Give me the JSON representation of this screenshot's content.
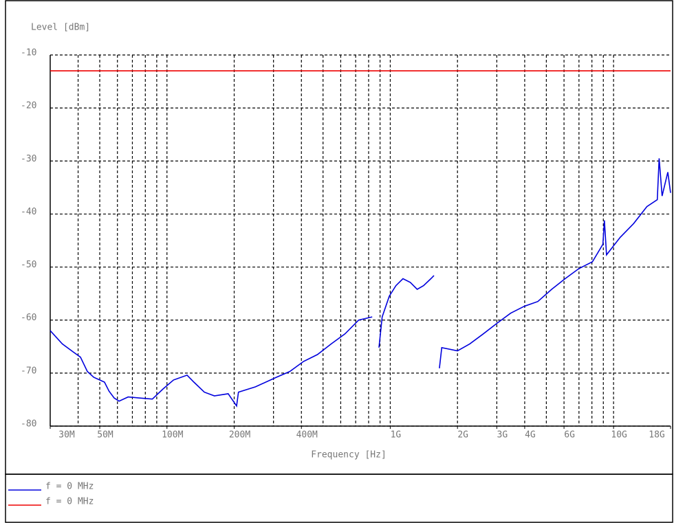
{
  "chart_data": {
    "type": "line",
    "y_label": "Level [dBm]",
    "x_label": "Frequency [Hz]",
    "xscale": "log",
    "xlim": [
      30000000,
      18000000000
    ],
    "xticks": [
      {
        "value": 30000000,
        "label": "30M"
      },
      {
        "value": 50000000,
        "label": "50M"
      },
      {
        "value": 100000000,
        "label": "100M"
      },
      {
        "value": 200000000,
        "label": "200M"
      },
      {
        "value": 400000000,
        "label": "400M"
      },
      {
        "value": 1000000000,
        "label": "1G"
      },
      {
        "value": 2000000000,
        "label": "2G"
      },
      {
        "value": 3000000000,
        "label": "3G"
      },
      {
        "value": 4000000000,
        "label": "4G"
      },
      {
        "value": 6000000000,
        "label": "6G"
      },
      {
        "value": 10000000000,
        "label": "10G"
      },
      {
        "value": 18000000000,
        "label": "18G"
      }
    ],
    "xgrid": [
      40000000,
      50000000,
      60000000,
      70000000,
      80000000,
      90000000,
      100000000,
      200000000,
      300000000,
      400000000,
      500000000,
      600000000,
      700000000,
      800000000,
      900000000,
      1000000000,
      2000000000,
      3000000000,
      4000000000,
      5000000000,
      6000000000,
      7000000000,
      8000000000,
      9000000000,
      10000000000
    ],
    "ylim": [
      -80,
      -10
    ],
    "yticks": [
      -80,
      -70,
      -60,
      -50,
      -40,
      -30,
      -20,
      -10
    ],
    "grid": true,
    "series": [
      {
        "name": "f = 0 MHz",
        "color": "#0000dd",
        "x": [
          30000000,
          34000000,
          38000000,
          41000000,
          44000000,
          47000000,
          52500000,
          55000000,
          58000000,
          61000000,
          67000000,
          75000000,
          86000000,
          96000000,
          107000000,
          123000000,
          132000000,
          147000000,
          163000000,
          188000000,
          205000000,
          209000000,
          249000000,
          309000000,
          355000000,
          409000000,
          472000000,
          544000000,
          627000000,
          722000000,
          830000000,
          860000000,
          890000000,
          920000000,
          990000000,
          1060000000,
          1140000000,
          1230000000,
          1320000000,
          1410000000,
          1520000000,
          1570000000,
          1610000000,
          1660000000,
          1700000000,
          2000000000,
          2270000000,
          2610000000,
          3010000000,
          3460000000,
          3980000000,
          4580000000,
          5280000000,
          6070000000,
          6990000000,
          8040000000,
          8960000000,
          9100000000,
          9300000000,
          10700000000,
          12300000000,
          14100000000,
          15700000000,
          16000000000,
          16500000000,
          17500000000,
          18000000000
        ],
        "values": [
          -62,
          -64.5,
          -66,
          -67,
          -69.7,
          -70.8,
          -71.7,
          -73.4,
          -74.7,
          -75.3,
          -74.5,
          -74.7,
          -74.9,
          -73,
          -71.3,
          -70.4,
          -71.7,
          -73.6,
          -74.3,
          -73.9,
          -76.2,
          -73.6,
          -72.6,
          -70.8,
          -69.7,
          -67.8,
          -66.5,
          -64.5,
          -62.6,
          -60,
          -59.4,
          null,
          -65.2,
          -59.4,
          -55.5,
          -53.5,
          -52.2,
          -52.9,
          -54.2,
          -53.5,
          -52.2,
          -51.6,
          null,
          -69.1,
          -65.2,
          -65.8,
          -64.5,
          -62.6,
          -60.6,
          -58.7,
          -57.4,
          -56.5,
          -54.2,
          -52.2,
          -50.3,
          -49,
          -45.7,
          -41.2,
          -47.7,
          -44.4,
          -41.8,
          -38.6,
          -37.3,
          -29.5,
          -36.6,
          -32.1,
          -36
        ]
      },
      {
        "name": "f = 0 MHz",
        "color": "#ee0000",
        "x": [
          30000000,
          18000000000
        ],
        "values": [
          -13,
          -13
        ]
      }
    ]
  }
}
